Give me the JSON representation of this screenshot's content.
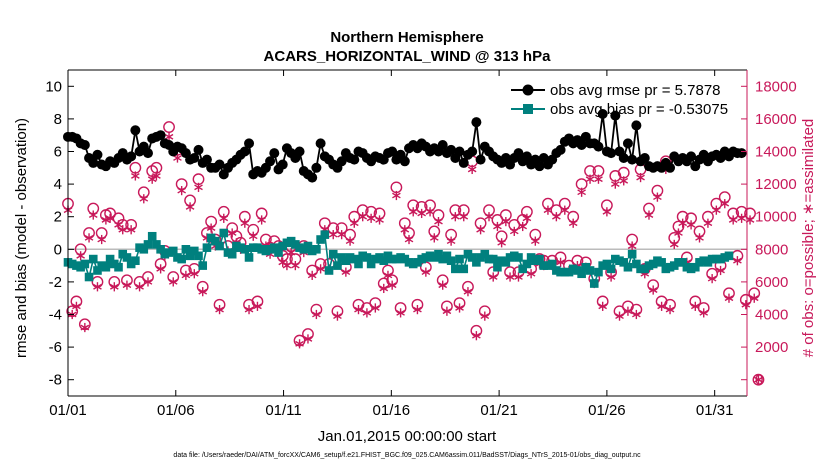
{
  "chart_data": {
    "type": "line",
    "title": "Northern Hemisphere",
    "subtitle": "ACARS_HORIZONTAL_WIND @ 313 hPa",
    "xlabel": "Jan.01,2015 00:00:00 start",
    "ylabel": "rmse and bias (model - observation)",
    "y2label": "# of obs: o=possible; ∗=assimilated",
    "footnote": "data file: /Users/raeder/DAI/ATM_forcXX/CAM6_setup/f.e21.FHIST_BGC.f09_025.CAM6assim.011/BadSST/Diags_NTrS_2015-01/obs_diag_output.nc",
    "xlim": [
      0,
      31.5
    ],
    "ylim": [
      -9,
      11
    ],
    "y2lim": [
      -1000,
      19000
    ],
    "x_tick_positions": [
      0,
      5,
      10,
      15,
      20,
      25,
      30
    ],
    "x_tick_labels": [
      "01/01",
      "01/06",
      "01/11",
      "01/16",
      "01/21",
      "01/26",
      "01/31"
    ],
    "y_ticks": [
      -8,
      -6,
      -4,
      -2,
      0,
      2,
      4,
      6,
      8,
      10
    ],
    "y2_ticks": [
      0,
      2000,
      4000,
      6000,
      8000,
      10000,
      12000,
      14000,
      16000,
      18000
    ],
    "legend_position": "top-right",
    "zero_line": true,
    "colors": {
      "rmse": "#000000",
      "bias": "#00807e",
      "obs": "#c8195a",
      "zero": "#bbbbbb"
    },
    "series": [
      {
        "name": "obs avg rmse pr = 5.7878",
        "marker": "circle",
        "values": [
          6.9,
          6.9,
          6.8,
          6.5,
          6.4,
          5.6,
          5.3,
          5.8,
          5.2,
          5.1,
          5.4,
          5.3,
          5.6,
          5.9,
          5.5,
          5.7,
          7.3,
          6.0,
          6.3,
          5.9,
          6.8,
          6.9,
          7.0,
          6.5,
          6.4,
          6.0,
          6.3,
          6.2,
          5.9,
          5.5,
          5.6,
          6.1,
          5.3,
          5.5,
          5.0,
          5.0,
          5.2,
          4.6,
          5.0,
          5.3,
          5.5,
          5.8,
          6.0,
          6.5,
          4.6,
          4.8,
          4.7,
          5.0,
          5.4,
          5.9,
          4.9,
          5.2,
          6.2,
          5.9,
          5.6,
          6.0,
          4.8,
          4.6,
          4.4,
          5.0,
          6.5,
          5.7,
          5.5,
          5.2,
          5.0,
          5.4,
          5.9,
          5.6,
          5.5,
          6.0,
          5.9,
          5.6,
          5.4,
          5.7,
          5.6,
          5.5,
          5.9,
          6.0,
          5.5,
          5.8,
          5.4,
          6.2,
          6.4,
          6.2,
          6.5,
          6.3,
          6.0,
          6.2,
          6.0,
          6.4,
          5.9,
          6.1,
          5.6,
          6.0,
          5.3,
          5.8,
          6.0,
          7.8,
          5.5,
          6.3,
          6.0,
          5.7,
          5.5,
          5.3,
          5.6,
          5.2,
          5.6,
          5.9,
          5.4,
          5.7,
          5.2,
          5.5,
          5.1,
          5.6,
          5.2,
          5.5,
          5.9,
          6.1,
          6.6,
          6.8,
          6.5,
          6.7,
          6.4,
          6.9,
          6.5,
          6.5,
          6.3,
          8.3,
          6.0,
          5.9,
          8.2,
          6.0,
          5.6,
          6.5,
          5.5,
          7.6,
          5.4,
          5.6,
          5.1,
          5.0,
          5.1,
          5.0,
          5.3,
          5.0,
          5.7,
          5.4,
          5.6,
          5.4,
          5.7,
          5.1,
          5.5,
          5.8,
          5.4,
          5.7,
          5.8,
          5.6,
          6.0,
          5.7,
          6.0,
          5.9,
          5.9
        ]
      },
      {
        "name": "obs avg bias pr = -0.53075",
        "marker": "square",
        "values": [
          -0.8,
          -0.9,
          -1.0,
          -1.1,
          -0.9,
          -1.7,
          -0.6,
          -1.3,
          -1.0,
          -1.1,
          -0.6,
          -0.9,
          -1.1,
          -0.3,
          -0.5,
          -0.9,
          -0.7,
          0.1,
          0.0,
          0.3,
          0.8,
          0.3,
          0.0,
          -0.3,
          -0.2,
          -0.1,
          -0.5,
          -0.6,
          0.0,
          -0.4,
          -0.1,
          -0.4,
          -1.0,
          0.1,
          0.7,
          0.5,
          0.2,
          1.0,
          -0.2,
          -0.3,
          0.2,
          0.1,
          0.0,
          -0.5,
          0.1,
          0.1,
          0.0,
          -0.1,
          0.0,
          0.1,
          -0.2,
          0.2,
          0.4,
          0.5,
          0.3,
          0.1,
          0.0,
          0.2,
          -0.1,
          0.0,
          0.6,
          0.9,
          -1.3,
          -0.3,
          -1.0,
          -0.5,
          -0.7,
          -0.5,
          -0.6,
          -0.9,
          -0.4,
          -0.5,
          -0.9,
          -0.6,
          -0.5,
          -0.7,
          -0.4,
          -0.6,
          -0.6,
          -0.5,
          -0.6,
          -0.8,
          -0.9,
          -0.8,
          -0.6,
          -0.5,
          -0.4,
          -0.5,
          -0.3,
          -0.6,
          -0.4,
          -0.7,
          -1.2,
          -0.6,
          -1.2,
          -0.3,
          -0.5,
          -0.8,
          -0.5,
          -0.3,
          -0.6,
          -0.6,
          -1.1,
          -0.7,
          -0.8,
          -0.5,
          -0.4,
          -0.5,
          -1.2,
          -0.9,
          -0.5,
          -0.7,
          -0.6,
          -1.0,
          -1.0,
          -0.9,
          -1.3,
          -1.4,
          -1.4,
          -1.4,
          -1.2,
          -1.3,
          -1.5,
          -1.1,
          -1.3,
          -2.1,
          -1.4,
          -1.0,
          -0.9,
          -1.2,
          -0.6,
          -0.7,
          -0.8,
          -1.1,
          -0.3,
          -0.9,
          -1.2,
          -1.2,
          -1.0,
          -0.9,
          -0.7,
          -0.8,
          -1.2,
          -1.1,
          -1.0,
          -0.8,
          -0.8,
          -1.1,
          -1.2,
          -1.1,
          -0.8,
          -0.7,
          -0.8,
          -0.6,
          -0.6,
          -0.6,
          -0.5,
          -0.4
        ]
      },
      {
        "name": "# of obs possible",
        "marker": "o",
        "axis": "right",
        "values": [
          10800,
          4200,
          4800,
          8000,
          3400,
          9000,
          10500,
          6000,
          9000,
          10100,
          10200,
          6000,
          9900,
          9500,
          6100,
          9500,
          13000,
          6000,
          11500,
          6300,
          12800,
          13000,
          7100,
          7900,
          15500,
          6300,
          14100,
          12000,
          6700,
          11000,
          6800,
          12300,
          5700,
          9000,
          9700,
          8600,
          4600,
          10300,
          8200,
          9300,
          8800,
          8400,
          10000,
          4600,
          9200,
          4800,
          10200,
          8600,
          8100,
          8500,
          8200,
          7600,
          7400,
          8200,
          7400,
          2400,
          8200,
          2800,
          6700,
          4300,
          7100,
          9600,
          7100,
          9300,
          4200,
          9300,
          6900,
          8900,
          10000,
          4600,
          10400,
          4400,
          10300,
          4700,
          10200,
          5900,
          6700,
          6100,
          11800,
          4400,
          9600,
          9000,
          10700,
          4600,
          10600,
          6900,
          10700,
          9100,
          10100,
          6100,
          4500,
          8900,
          10400,
          4700,
          10400,
          5700,
          13400,
          3000,
          9600,
          4200,
          10400,
          6600,
          9800,
          8800,
          10100,
          6600,
          9500,
          6600,
          9800,
          10300,
          6800,
          8900,
          7400,
          7300,
          10800,
          7300,
          10400,
          7500,
          10800,
          7000,
          10000,
          7300,
          12000,
          7200,
          12800,
          6200,
          12800,
          4800,
          10700,
          6600,
          12500,
          4200,
          12700,
          4500,
          8600,
          4300,
          12900,
          6800,
          10500,
          5800,
          11600,
          4800,
          13400,
          4600,
          8700,
          9400,
          10000,
          7500,
          9900,
          4800,
          9100,
          4400,
          10000,
          6500,
          10800,
          7000,
          11200,
          5300,
          10200,
          7600,
          10300,
          4900,
          10200,
          5300,
          0
        ]
      },
      {
        "name": "# of obs assimilated",
        "marker": "asterisk",
        "axis": "right",
        "values": [
          10400,
          4000,
          4500,
          7600,
          3200,
          8700,
          10100,
          5700,
          8600,
          9800,
          9900,
          5700,
          9500,
          9200,
          5800,
          9200,
          12500,
          5700,
          11100,
          6000,
          12300,
          12500,
          6800,
          7600,
          14900,
          6000,
          13600,
          11600,
          6400,
          10600,
          6500,
          11800,
          5400,
          8700,
          9300,
          8200,
          4300,
          9900,
          7900,
          9000,
          8400,
          8000,
          9600,
          4300,
          8800,
          4500,
          9800,
          8200,
          7700,
          8100,
          7800,
          7200,
          7000,
          7800,
          7000,
          2200,
          7800,
          2500,
          6400,
          4000,
          6800,
          9200,
          6800,
          8900,
          3900,
          8900,
          6600,
          8500,
          9600,
          4300,
          10000,
          4100,
          9900,
          4400,
          9800,
          5600,
          6400,
          5800,
          11300,
          4100,
          9200,
          8600,
          10300,
          4300,
          10200,
          6600,
          10300,
          8700,
          9700,
          5800,
          4200,
          8500,
          10000,
          4400,
          10000,
          5400,
          12900,
          2700,
          9200,
          3900,
          10000,
          6300,
          9400,
          8400,
          9700,
          6300,
          9100,
          6300,
          9400,
          9900,
          6500,
          8500,
          7100,
          7000,
          10400,
          7000,
          10000,
          7200,
          10400,
          6700,
          9600,
          7000,
          11500,
          6900,
          12300,
          5900,
          12300,
          4500,
          10300,
          6300,
          12000,
          3900,
          12200,
          4200,
          8200,
          4000,
          12400,
          6500,
          10100,
          5500,
          11200,
          4500,
          12900,
          4300,
          8300,
          9000,
          9600,
          7200,
          9500,
          4500,
          8700,
          4100,
          9600,
          6200,
          10400,
          6700,
          10800,
          5000,
          9800,
          7300,
          9900,
          4600,
          9800,
          5000,
          0
        ]
      }
    ]
  }
}
